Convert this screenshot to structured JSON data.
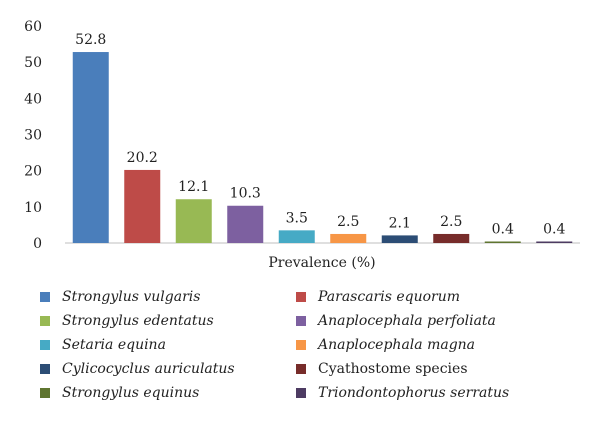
{
  "chart_data": {
    "type": "bar",
    "xlabel": "Prevalence (%)",
    "ylabel": "",
    "ylim": [
      0,
      60
    ],
    "yticks": [
      0,
      10,
      20,
      30,
      40,
      50,
      60
    ],
    "grid": false,
    "legend_placement": "bottom",
    "categories": [
      "Strongylus vulgaris",
      "Parascaris equorum",
      "Strongylus edentatus",
      "Anaplocephala perfoliata",
      "Setaria equina",
      "Anaplocephala magna",
      "Cylicocyclus auriculatus",
      "Cyathostome species",
      "Strongylus equinus",
      "Triondontophorus serratus"
    ],
    "values": [
      52.8,
      20.2,
      12.1,
      10.3,
      3.5,
      2.5,
      2.1,
      2.5,
      0.4,
      0.4
    ],
    "data_labels": [
      "52.8",
      "20.2",
      "12.1",
      "10.3",
      "3.5",
      "2.5",
      "2.1",
      "2.5",
      "0.4",
      "0.4"
    ],
    "colors": [
      "#4a7ebb",
      "#be4b48",
      "#98b954",
      "#7d60a0",
      "#46aac5",
      "#f79646",
      "#2c4d75",
      "#772c2a",
      "#5f7530",
      "#4d3b62"
    ],
    "italic": [
      true,
      true,
      true,
      true,
      true,
      true,
      true,
      false,
      true,
      true
    ]
  }
}
